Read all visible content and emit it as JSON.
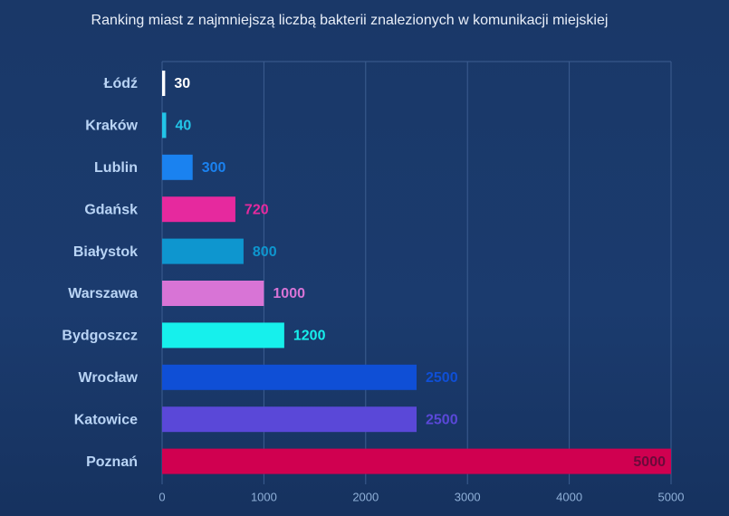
{
  "chart_data": {
    "type": "bar",
    "orientation": "horizontal",
    "title": "Ranking miast z najmniejszą liczbą bakterii znalezionych w komunikacji miejskiej",
    "categories": [
      "Łódź",
      "Kraków",
      "Lublin",
      "Gdańsk",
      "Białystok",
      "Warszawa",
      "Bydgoszcz",
      "Wrocław",
      "Katowice",
      "Poznań"
    ],
    "values": [
      30,
      40,
      300,
      720,
      800,
      1000,
      1200,
      2500,
      2500,
      5000
    ],
    "colors": [
      "#ffffff",
      "#22c5e8",
      "#1a82f0",
      "#e6299e",
      "#0e96cf",
      "#d874d6",
      "#16f0ec",
      "#0f4fd6",
      "#5a48d8",
      "#d00050"
    ],
    "xlim": [
      0,
      5000
    ],
    "xticks": [
      0,
      1000,
      2000,
      3000,
      4000,
      5000
    ],
    "grid": true
  }
}
